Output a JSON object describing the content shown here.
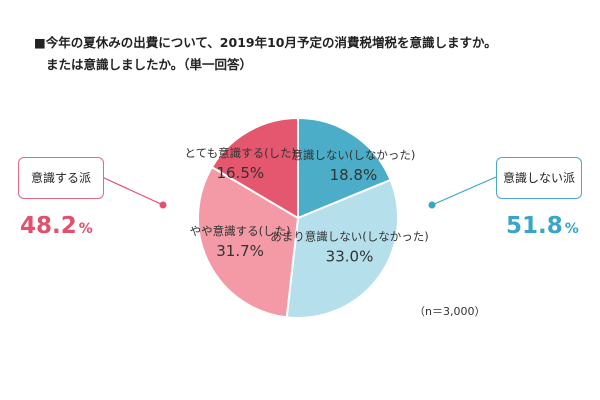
{
  "title": {
    "line1": "■今年の夏休みの出費について、2019年10月予定の消費税増税を意識しますか。",
    "line2": "または意識しましたか。（単一回答）"
  },
  "chart_data": {
    "type": "pie",
    "title": "■今年の夏休みの出費について、2019年10月予定の消費税増税を意識しますか。または意識しましたか。（単一回答）",
    "slices": [
      {
        "label": "意識しない(しなかった)",
        "value": 18.8,
        "value_label": "18.8%",
        "color": "#4badc8"
      },
      {
        "label": "あまり意識しない(しなかった)",
        "value": 33.0,
        "value_label": "33.0%",
        "color": "#b5dfea"
      },
      {
        "label": "やや意識する(した)",
        "value": 31.7,
        "value_label": "31.7%",
        "color": "#f39aa6"
      },
      {
        "label": "とても意識する(した)",
        "value": 16.5,
        "value_label": "16.5%",
        "color": "#e5566f"
      }
    ],
    "start_angle": "12 o'clock",
    "direction": "clockwise",
    "groups": [
      {
        "label": "意識する派",
        "value_text": "48.2",
        "unit": "%",
        "color": "#e3506e",
        "side": "left"
      },
      {
        "label": "意識しない派",
        "value_text": "51.8",
        "unit": "%",
        "color": "#3aa6c6",
        "side": "right"
      }
    ],
    "note": "（n＝3,000）"
  }
}
